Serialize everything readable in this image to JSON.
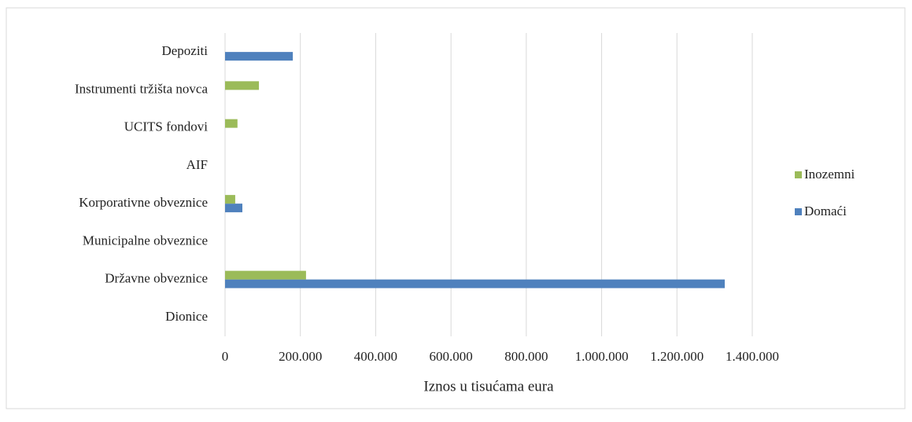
{
  "chart_data": {
    "type": "bar",
    "orientation": "horizontal",
    "x_label": "Iznos u tisućama eura",
    "categories": [
      "Depoziti",
      "Instrumenti tržišta novca",
      "UCITS fondovi",
      "AIF",
      "Korporativne obveznice",
      "Municipalne obveznice",
      "Državne obveznice",
      "Dionice"
    ],
    "series": [
      {
        "name": "Domaći",
        "color": "#4f81bd",
        "values": [
          180000,
          0,
          0,
          0,
          46000,
          0,
          1327000,
          0
        ]
      },
      {
        "name": "Inozemni",
        "color": "#9bbb59",
        "values": [
          0,
          90000,
          33000,
          0,
          27000,
          0,
          215000,
          0
        ]
      }
    ],
    "xlim": [
      0,
      1400000
    ],
    "xticks": [
      0,
      {
        "value": 200000,
        "label": "200.000"
      },
      {
        "value": 400000,
        "label": "400.000"
      },
      {
        "value": 600000,
        "label": "600.000"
      },
      {
        "value": 800000,
        "label": "800.000"
      },
      {
        "value": 1000000,
        "label": "1.000.000"
      },
      {
        "value": 1200000,
        "label": "1.200.000"
      },
      {
        "value": 1400000,
        "label": "1.400.000"
      }
    ],
    "grid": true,
    "legend": "right"
  }
}
